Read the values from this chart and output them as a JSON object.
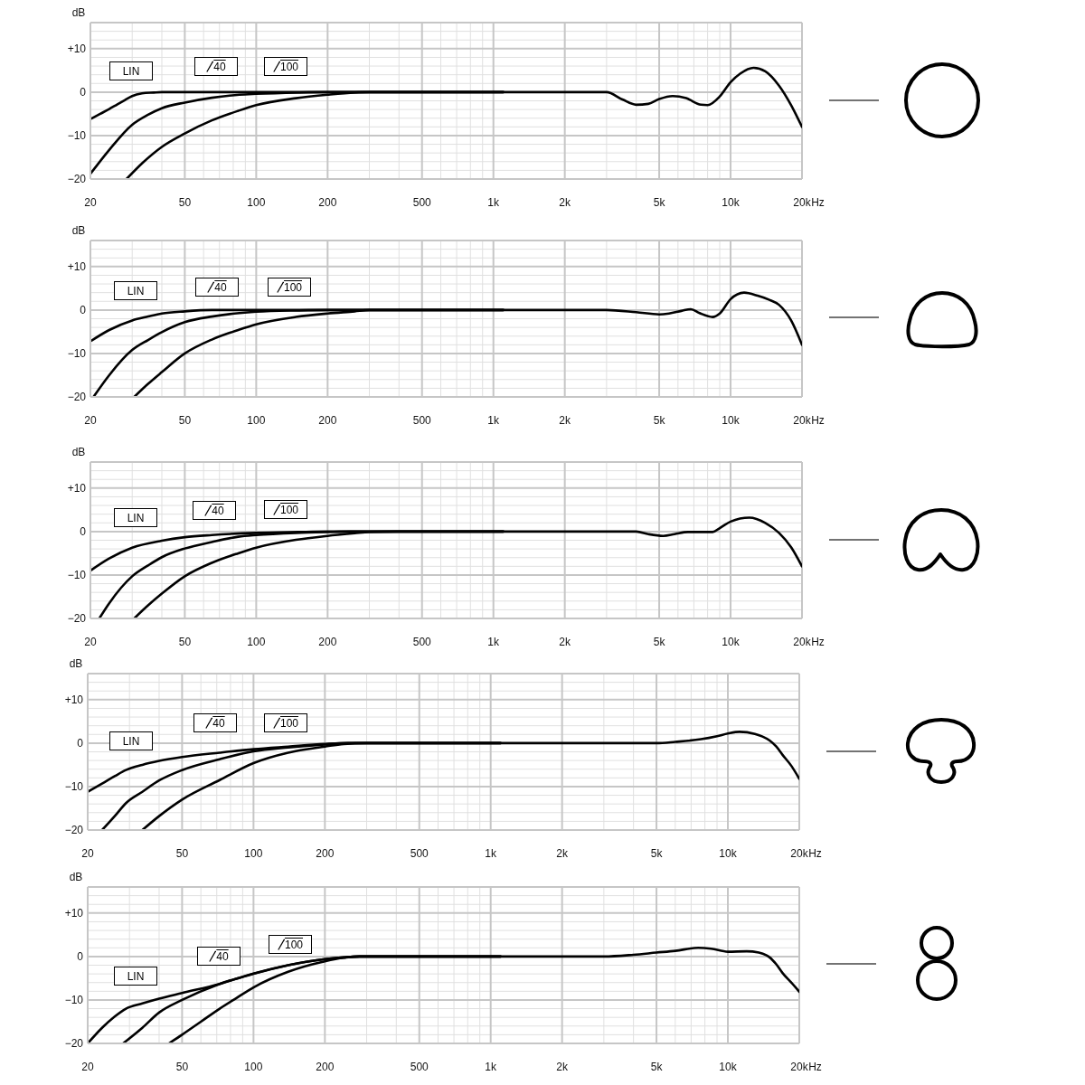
{
  "chart_data": [
    {
      "type": "line",
      "ylabel": "dB",
      "xlabel": "Hz",
      "log": "x",
      "grid": true,
      "legend": "top left",
      "xlim": [
        20,
        20000
      ],
      "ylim": [
        -20,
        16
      ],
      "xticks": [
        20,
        {
          "value": 30,
          "label": null
        },
        {
          "value": 40,
          "label": null
        },
        50,
        {
          "value": 60,
          "label": null
        },
        {
          "value": 70,
          "label": null
        },
        {
          "value": 80,
          "label": null
        },
        {
          "value": 90,
          "label": null
        },
        100,
        200,
        {
          "value": 300,
          "label": null
        },
        {
          "value": 400,
          "label": null
        },
        500,
        {
          "value": 600,
          "label": null
        },
        {
          "value": 700,
          "label": null
        },
        {
          "value": 800,
          "label": null
        },
        {
          "value": 900,
          "label": null
        },
        {
          "value": 1000,
          "label": "1k"
        },
        {
          "value": 2000,
          "label": "2k"
        },
        {
          "value": 3000,
          "label": null
        },
        {
          "value": 4000,
          "label": null
        },
        {
          "value": 5000,
          "label": "5k"
        },
        {
          "value": 6000,
          "label": null
        },
        {
          "value": 7000,
          "label": null
        },
        {
          "value": 8000,
          "label": null
        },
        {
          "value": 9000,
          "label": null
        },
        {
          "value": 10000,
          "label": "10k"
        },
        {
          "value": 20000,
          "label": "20k"
        }
      ],
      "yticks": [
        {
          "value": -20,
          "label": "−20"
        },
        {
          "value": -18,
          "label": null
        },
        {
          "value": -16,
          "label": null
        },
        {
          "value": -14,
          "label": null
        },
        {
          "value": -12,
          "label": null
        },
        {
          "value": -10,
          "label": "−10"
        },
        {
          "value": -8,
          "label": null
        },
        {
          "value": -6,
          "label": null
        },
        {
          "value": -4,
          "label": null
        },
        {
          "value": -2,
          "label": null
        },
        {
          "value": 0,
          "label": "0"
        },
        {
          "value": 2,
          "label": null
        },
        {
          "value": 4,
          "label": null
        },
        {
          "value": 6,
          "label": null
        },
        {
          "value": 8,
          "label": null
        },
        {
          "value": 10,
          "label": "+10"
        },
        {
          "value": 12,
          "label": null
        },
        {
          "value": 14,
          "label": null
        },
        {
          "value": 16,
          "label": null
        }
      ],
      "series": [
        {
          "name": "LIN",
          "color": "#000000",
          "x": [
            20,
            22,
            24,
            26,
            28,
            30,
            33,
            37,
            40,
            50,
            100,
            200,
            500,
            1000,
            2000,
            2500,
            3000,
            3500,
            4000,
            4500,
            5000,
            5700,
            6500,
            7500,
            8000,
            9000,
            10000,
            11000,
            12500,
            14000,
            16000,
            18000,
            20000
          ],
          "values": [
            -6.2,
            -5,
            -3.9,
            -2.8,
            -1.8,
            -0.9,
            -0.3,
            -0.1,
            0,
            0,
            0,
            0,
            0,
            0,
            0,
            0,
            0,
            -1.7,
            -2.9,
            -2.7,
            -1.6,
            -0.9,
            -1.4,
            -2.9,
            -3,
            -1,
            2.3,
            4.3,
            5.6,
            4.8,
            1.5,
            -3,
            -8
          ]
        },
        {
          "name": "40",
          "color": "#000000",
          "x": [
            20,
            24,
            30,
            35,
            40,
            50,
            65,
            85,
            100,
            150,
            200,
            500,
            1100
          ],
          "values": [
            -18.8,
            -13.3,
            -7.5,
            -5.2,
            -3.7,
            -2.4,
            -1.3,
            -0.6,
            -0.4,
            -0.1,
            0,
            0,
            0
          ]
        },
        {
          "name": "100",
          "color": "#000000",
          "x": [
            28.4,
            33.3,
            40,
            50,
            65,
            84,
            100,
            147,
            200,
            260,
            300,
            500,
            1100
          ],
          "values": [
            -20,
            -16.2,
            -12.6,
            -9.5,
            -6.5,
            -4.3,
            -3,
            -1.4,
            -0.6,
            -0.1,
            0,
            0,
            0
          ]
        }
      ]
    },
    {
      "type": "line",
      "ylabel": "dB",
      "xlabel": "Hz",
      "log": "x",
      "grid": true,
      "legend": "top left",
      "xlim": [
        20,
        20000
      ],
      "ylim": [
        -20,
        16
      ],
      "xticks": [
        20,
        {
          "value": 30,
          "label": null
        },
        {
          "value": 40,
          "label": null
        },
        50,
        {
          "value": 60,
          "label": null
        },
        {
          "value": 70,
          "label": null
        },
        {
          "value": 80,
          "label": null
        },
        {
          "value": 90,
          "label": null
        },
        100,
        200,
        {
          "value": 300,
          "label": null
        },
        {
          "value": 400,
          "label": null
        },
        500,
        {
          "value": 600,
          "label": null
        },
        {
          "value": 700,
          "label": null
        },
        {
          "value": 800,
          "label": null
        },
        {
          "value": 900,
          "label": null
        },
        {
          "value": 1000,
          "label": "1k"
        },
        {
          "value": 2000,
          "label": "2k"
        },
        {
          "value": 3000,
          "label": null
        },
        {
          "value": 4000,
          "label": null
        },
        {
          "value": 5000,
          "label": "5k"
        },
        {
          "value": 6000,
          "label": null
        },
        {
          "value": 7000,
          "label": null
        },
        {
          "value": 8000,
          "label": null
        },
        {
          "value": 9000,
          "label": null
        },
        {
          "value": 10000,
          "label": "10k"
        },
        {
          "value": 20000,
          "label": "20k"
        }
      ],
      "yticks": [
        {
          "value": -20,
          "label": "−20"
        },
        {
          "value": -18,
          "label": null
        },
        {
          "value": -16,
          "label": null
        },
        {
          "value": -14,
          "label": null
        },
        {
          "value": -12,
          "label": null
        },
        {
          "value": -10,
          "label": "−10"
        },
        {
          "value": -8,
          "label": null
        },
        {
          "value": -6,
          "label": null
        },
        {
          "value": -4,
          "label": null
        },
        {
          "value": -2,
          "label": null
        },
        {
          "value": 0,
          "label": "0"
        },
        {
          "value": 2,
          "label": null
        },
        {
          "value": 4,
          "label": null
        },
        {
          "value": 6,
          "label": null
        },
        {
          "value": 8,
          "label": null
        },
        {
          "value": 10,
          "label": "+10"
        },
        {
          "value": 12,
          "label": null
        },
        {
          "value": 14,
          "label": null
        },
        {
          "value": 16,
          "label": null
        }
      ],
      "series": [
        {
          "name": "LIN",
          "color": "#000000",
          "x": [
            20,
            24,
            30,
            35,
            40,
            50,
            65,
            100,
            200,
            500,
            1000,
            2000,
            3000,
            4000,
            5000,
            5500,
            6200,
            6800,
            7400,
            8400,
            9000,
            10000,
            11400,
            13000,
            14500,
            16000,
            18000,
            20000
          ],
          "values": [
            -7.2,
            -4.6,
            -2.4,
            -1.5,
            -0.8,
            -0.3,
            0,
            0,
            0,
            0,
            0,
            0,
            0,
            -0.5,
            -1,
            -0.8,
            -0.2,
            0.2,
            -0.7,
            -1.6,
            -0.8,
            2.5,
            4,
            3.3,
            2.4,
            1.2,
            -2.4,
            -8
          ]
        },
        {
          "name": "40",
          "color": "#000000",
          "x": [
            20.6,
            24,
            30,
            35,
            40,
            50,
            65,
            85,
            100,
            150,
            200,
            500,
            1100
          ],
          "values": [
            -20,
            -15,
            -9.2,
            -6.9,
            -5.1,
            -2.8,
            -1.5,
            -0.7,
            -0.4,
            -0.1,
            0,
            0,
            0
          ]
        },
        {
          "name": "100",
          "color": "#000000",
          "x": [
            30.6,
            35,
            40,
            50,
            65,
            84,
            100,
            147,
            200,
            260,
            300,
            500,
            1100
          ],
          "values": [
            -20,
            -17,
            -14.3,
            -10,
            -6.8,
            -4.6,
            -3.3,
            -1.6,
            -0.8,
            -0.3,
            0,
            0,
            0
          ]
        }
      ]
    },
    {
      "type": "line",
      "ylabel": "dB",
      "xlabel": "Hz",
      "log": "x",
      "grid": true,
      "legend": "top left",
      "xlim": [
        20,
        20000
      ],
      "ylim": [
        -20,
        16
      ],
      "xticks": [
        20,
        {
          "value": 30,
          "label": null
        },
        {
          "value": 40,
          "label": null
        },
        50,
        {
          "value": 60,
          "label": null
        },
        {
          "value": 70,
          "label": null
        },
        {
          "value": 80,
          "label": null
        },
        {
          "value": 90,
          "label": null
        },
        100,
        200,
        {
          "value": 300,
          "label": null
        },
        {
          "value": 400,
          "label": null
        },
        500,
        {
          "value": 600,
          "label": null
        },
        {
          "value": 700,
          "label": null
        },
        {
          "value": 800,
          "label": null
        },
        {
          "value": 900,
          "label": null
        },
        {
          "value": 1000,
          "label": "1k"
        },
        {
          "value": 2000,
          "label": "2k"
        },
        {
          "value": 3000,
          "label": null
        },
        {
          "value": 4000,
          "label": null
        },
        {
          "value": 5000,
          "label": "5k"
        },
        {
          "value": 6000,
          "label": null
        },
        {
          "value": 7000,
          "label": null
        },
        {
          "value": 8000,
          "label": null
        },
        {
          "value": 9000,
          "label": null
        },
        {
          "value": 10000,
          "label": "10k"
        },
        {
          "value": 20000,
          "label": "20k"
        }
      ],
      "yticks": [
        {
          "value": -20,
          "label": "−20"
        },
        {
          "value": -18,
          "label": null
        },
        {
          "value": -16,
          "label": null
        },
        {
          "value": -14,
          "label": null
        },
        {
          "value": -12,
          "label": null
        },
        {
          "value": -10,
          "label": "−10"
        },
        {
          "value": -8,
          "label": null
        },
        {
          "value": -6,
          "label": null
        },
        {
          "value": -4,
          "label": null
        },
        {
          "value": -2,
          "label": null
        },
        {
          "value": 0,
          "label": "0"
        },
        {
          "value": 2,
          "label": null
        },
        {
          "value": 4,
          "label": null
        },
        {
          "value": 6,
          "label": null
        },
        {
          "value": 8,
          "label": null
        },
        {
          "value": 10,
          "label": "+10"
        },
        {
          "value": 12,
          "label": null
        },
        {
          "value": 14,
          "label": null
        },
        {
          "value": 16,
          "label": null
        }
      ],
      "series": [
        {
          "name": "LIN",
          "color": "#000000",
          "x": [
            20,
            24,
            30,
            40,
            50,
            65,
            100,
            150,
            200,
            500,
            1000,
            2000,
            3000,
            4000,
            4500,
            5200,
            5800,
            6600,
            8400,
            9000,
            10000,
            12000,
            14000,
            16000,
            18000,
            20000
          ],
          "values": [
            -9,
            -6.2,
            -3.7,
            -2.1,
            -1.3,
            -0.8,
            -0.3,
            -0.1,
            0,
            0,
            0,
            0,
            0,
            0,
            -0.6,
            -1,
            -0.6,
            -0.1,
            -0.1,
            0.8,
            2.3,
            3.2,
            2,
            -0.3,
            -3.6,
            -8
          ]
        },
        {
          "name": "40",
          "color": "#000000",
          "x": [
            21.8,
            24,
            30,
            35,
            40,
            50,
            65,
            84,
            100,
            147,
            200,
            250,
            500,
            1100
          ],
          "values": [
            -20,
            -16.5,
            -10.3,
            -7.8,
            -5.9,
            -3.9,
            -2.4,
            -1.2,
            -0.8,
            -0.3,
            -0.1,
            0,
            0,
            0
          ]
        },
        {
          "name": "100",
          "color": "#000000",
          "x": [
            30.6,
            35,
            40,
            50,
            65,
            84,
            100,
            147,
            200,
            260,
            300,
            400,
            1100
          ],
          "values": [
            -20,
            -17,
            -14.3,
            -10.3,
            -7.2,
            -5,
            -3.7,
            -1.9,
            -1,
            -0.4,
            -0.1,
            0,
            0
          ]
        }
      ]
    },
    {
      "type": "line",
      "ylabel": "dB",
      "xlabel": "Hz",
      "log": "x",
      "grid": true,
      "legend": "top left",
      "xlim": [
        20,
        20000
      ],
      "ylim": [
        -20,
        16
      ],
      "xticks": [
        20,
        {
          "value": 30,
          "label": null
        },
        {
          "value": 40,
          "label": null
        },
        50,
        {
          "value": 60,
          "label": null
        },
        {
          "value": 70,
          "label": null
        },
        {
          "value": 80,
          "label": null
        },
        {
          "value": 90,
          "label": null
        },
        100,
        200,
        {
          "value": 300,
          "label": null
        },
        {
          "value": 400,
          "label": null
        },
        500,
        {
          "value": 600,
          "label": null
        },
        {
          "value": 700,
          "label": null
        },
        {
          "value": 800,
          "label": null
        },
        {
          "value": 900,
          "label": null
        },
        {
          "value": 1000,
          "label": "1k"
        },
        {
          "value": 2000,
          "label": "2k"
        },
        {
          "value": 3000,
          "label": null
        },
        {
          "value": 4000,
          "label": null
        },
        {
          "value": 5000,
          "label": "5k"
        },
        {
          "value": 6000,
          "label": null
        },
        {
          "value": 7000,
          "label": null
        },
        {
          "value": 8000,
          "label": null
        },
        {
          "value": 9000,
          "label": null
        },
        {
          "value": 10000,
          "label": "10k"
        },
        {
          "value": 20000,
          "label": "20k"
        }
      ],
      "yticks": [
        {
          "value": -20,
          "label": "−20"
        },
        {
          "value": -18,
          "label": null
        },
        {
          "value": -16,
          "label": null
        },
        {
          "value": -14,
          "label": null
        },
        {
          "value": -12,
          "label": null
        },
        {
          "value": -10,
          "label": "−10"
        },
        {
          "value": -8,
          "label": null
        },
        {
          "value": -6,
          "label": null
        },
        {
          "value": -4,
          "label": null
        },
        {
          "value": -2,
          "label": null
        },
        {
          "value": 0,
          "label": "0"
        },
        {
          "value": 2,
          "label": null
        },
        {
          "value": 4,
          "label": null
        },
        {
          "value": 6,
          "label": null
        },
        {
          "value": 8,
          "label": null
        },
        {
          "value": 10,
          "label": "+10"
        },
        {
          "value": 12,
          "label": null
        },
        {
          "value": 14,
          "label": null
        },
        {
          "value": 16,
          "label": null
        }
      ],
      "series": [
        {
          "name": "LIN",
          "color": "#000000",
          "x": [
            20,
            23,
            26,
            29,
            34,
            40,
            50,
            72,
            100,
            140,
            200,
            250,
            500,
            1000,
            3000,
            5000,
            6000,
            7700,
            9000,
            10000,
            11200,
            13000,
            14000,
            15000,
            16000,
            17000,
            18500,
            20000
          ],
          "values": [
            -11.2,
            -9.3,
            -7.6,
            -6.2,
            -5,
            -4.1,
            -3.2,
            -2.2,
            -1.4,
            -0.8,
            -0.2,
            0,
            0,
            0,
            0,
            0,
            0.3,
            0.9,
            1.6,
            2.2,
            2.6,
            2.1,
            1.5,
            0.6,
            -0.8,
            -2.7,
            -5.2,
            -8.2
          ]
        },
        {
          "name": "40",
          "color": "#000000",
          "x": [
            23,
            26,
            29,
            34,
            40,
            50,
            72,
            100,
            140,
            200,
            250,
            500,
            1100
          ],
          "values": [
            -20,
            -16.8,
            -13.8,
            -11.2,
            -8.6,
            -6.2,
            -3.7,
            -1.9,
            -1,
            -0.3,
            0,
            0,
            0
          ]
        },
        {
          "name": "100",
          "color": "#000000",
          "x": [
            34,
            40,
            50,
            72,
            100,
            140,
            200,
            240,
            300,
            500,
            1100
          ],
          "values": [
            -20,
            -16.8,
            -13,
            -8.5,
            -4.6,
            -2.2,
            -0.8,
            -0.2,
            0,
            0,
            0
          ]
        }
      ]
    },
    {
      "type": "line",
      "ylabel": "dB",
      "xlabel": "Hz",
      "log": "x",
      "grid": true,
      "legend": "top left",
      "xlim": [
        20,
        20000
      ],
      "ylim": [
        -20,
        16
      ],
      "xticks": [
        20,
        {
          "value": 30,
          "label": null
        },
        {
          "value": 40,
          "label": null
        },
        50,
        {
          "value": 60,
          "label": null
        },
        {
          "value": 70,
          "label": null
        },
        {
          "value": 80,
          "label": null
        },
        {
          "value": 90,
          "label": null
        },
        100,
        200,
        {
          "value": 300,
          "label": null
        },
        {
          "value": 400,
          "label": null
        },
        500,
        {
          "value": 600,
          "label": null
        },
        {
          "value": 700,
          "label": null
        },
        {
          "value": 800,
          "label": null
        },
        {
          "value": 900,
          "label": null
        },
        {
          "value": 1000,
          "label": "1k"
        },
        {
          "value": 2000,
          "label": "2k"
        },
        {
          "value": 3000,
          "label": null
        },
        {
          "value": 4000,
          "label": null
        },
        {
          "value": 5000,
          "label": "5k"
        },
        {
          "value": 6000,
          "label": null
        },
        {
          "value": 7000,
          "label": null
        },
        {
          "value": 8000,
          "label": null
        },
        {
          "value": 9000,
          "label": null
        },
        {
          "value": 10000,
          "label": "10k"
        },
        {
          "value": 20000,
          "label": "20k"
        }
      ],
      "yticks": [
        {
          "value": -20,
          "label": "−20"
        },
        {
          "value": -18,
          "label": null
        },
        {
          "value": -16,
          "label": null
        },
        {
          "value": -14,
          "label": null
        },
        {
          "value": -12,
          "label": null
        },
        {
          "value": -10,
          "label": "−10"
        },
        {
          "value": -8,
          "label": null
        },
        {
          "value": -6,
          "label": null
        },
        {
          "value": -4,
          "label": null
        },
        {
          "value": -2,
          "label": null
        },
        {
          "value": 0,
          "label": "0"
        },
        {
          "value": 2,
          "label": null
        },
        {
          "value": 4,
          "label": null
        },
        {
          "value": 6,
          "label": null
        },
        {
          "value": 8,
          "label": null
        },
        {
          "value": 10,
          "label": "+10"
        },
        {
          "value": 12,
          "label": null
        },
        {
          "value": 14,
          "label": null
        },
        {
          "value": 16,
          "label": null
        }
      ],
      "series": [
        {
          "name": "LIN",
          "color": "#000000",
          "x": [
            20,
            23,
            26,
            29,
            34,
            40,
            50,
            72,
            100,
            140,
            200,
            240,
            280,
            500,
            1000,
            3000,
            4000,
            5000,
            6000,
            7500,
            8500,
            10000,
            12000,
            13500,
            14500,
            15000,
            16000,
            17000,
            18500,
            20000
          ],
          "values": [
            -20,
            -16.4,
            -13.8,
            -12,
            -10.8,
            -9.7,
            -8.4,
            -6.3,
            -3.9,
            -2,
            -0.6,
            -0.2,
            0,
            0,
            0,
            0,
            0.4,
            0.9,
            1.3,
            2,
            1.8,
            1.1,
            1.2,
            0.9,
            0.3,
            -0.2,
            -1.8,
            -3.8,
            -6,
            -8.1
          ]
        },
        {
          "name": "40",
          "color": "#000000",
          "x": [
            28.2,
            34,
            40,
            50,
            72,
            100,
            140,
            200,
            240,
            280,
            500,
            1100
          ],
          "values": [
            -20,
            -16.4,
            -12.9,
            -10,
            -6.3,
            -4,
            -2,
            -0.6,
            -0.2,
            0,
            0,
            0
          ]
        },
        {
          "name": "100",
          "color": "#000000",
          "x": [
            44,
            50,
            60,
            72,
            85,
            100,
            140,
            200,
            240,
            280,
            500,
            1100
          ],
          "values": [
            -20,
            -18,
            -15,
            -12,
            -9.5,
            -7.1,
            -3.5,
            -1.1,
            -0.3,
            0,
            0,
            0
          ]
        }
      ]
    }
  ]
}
